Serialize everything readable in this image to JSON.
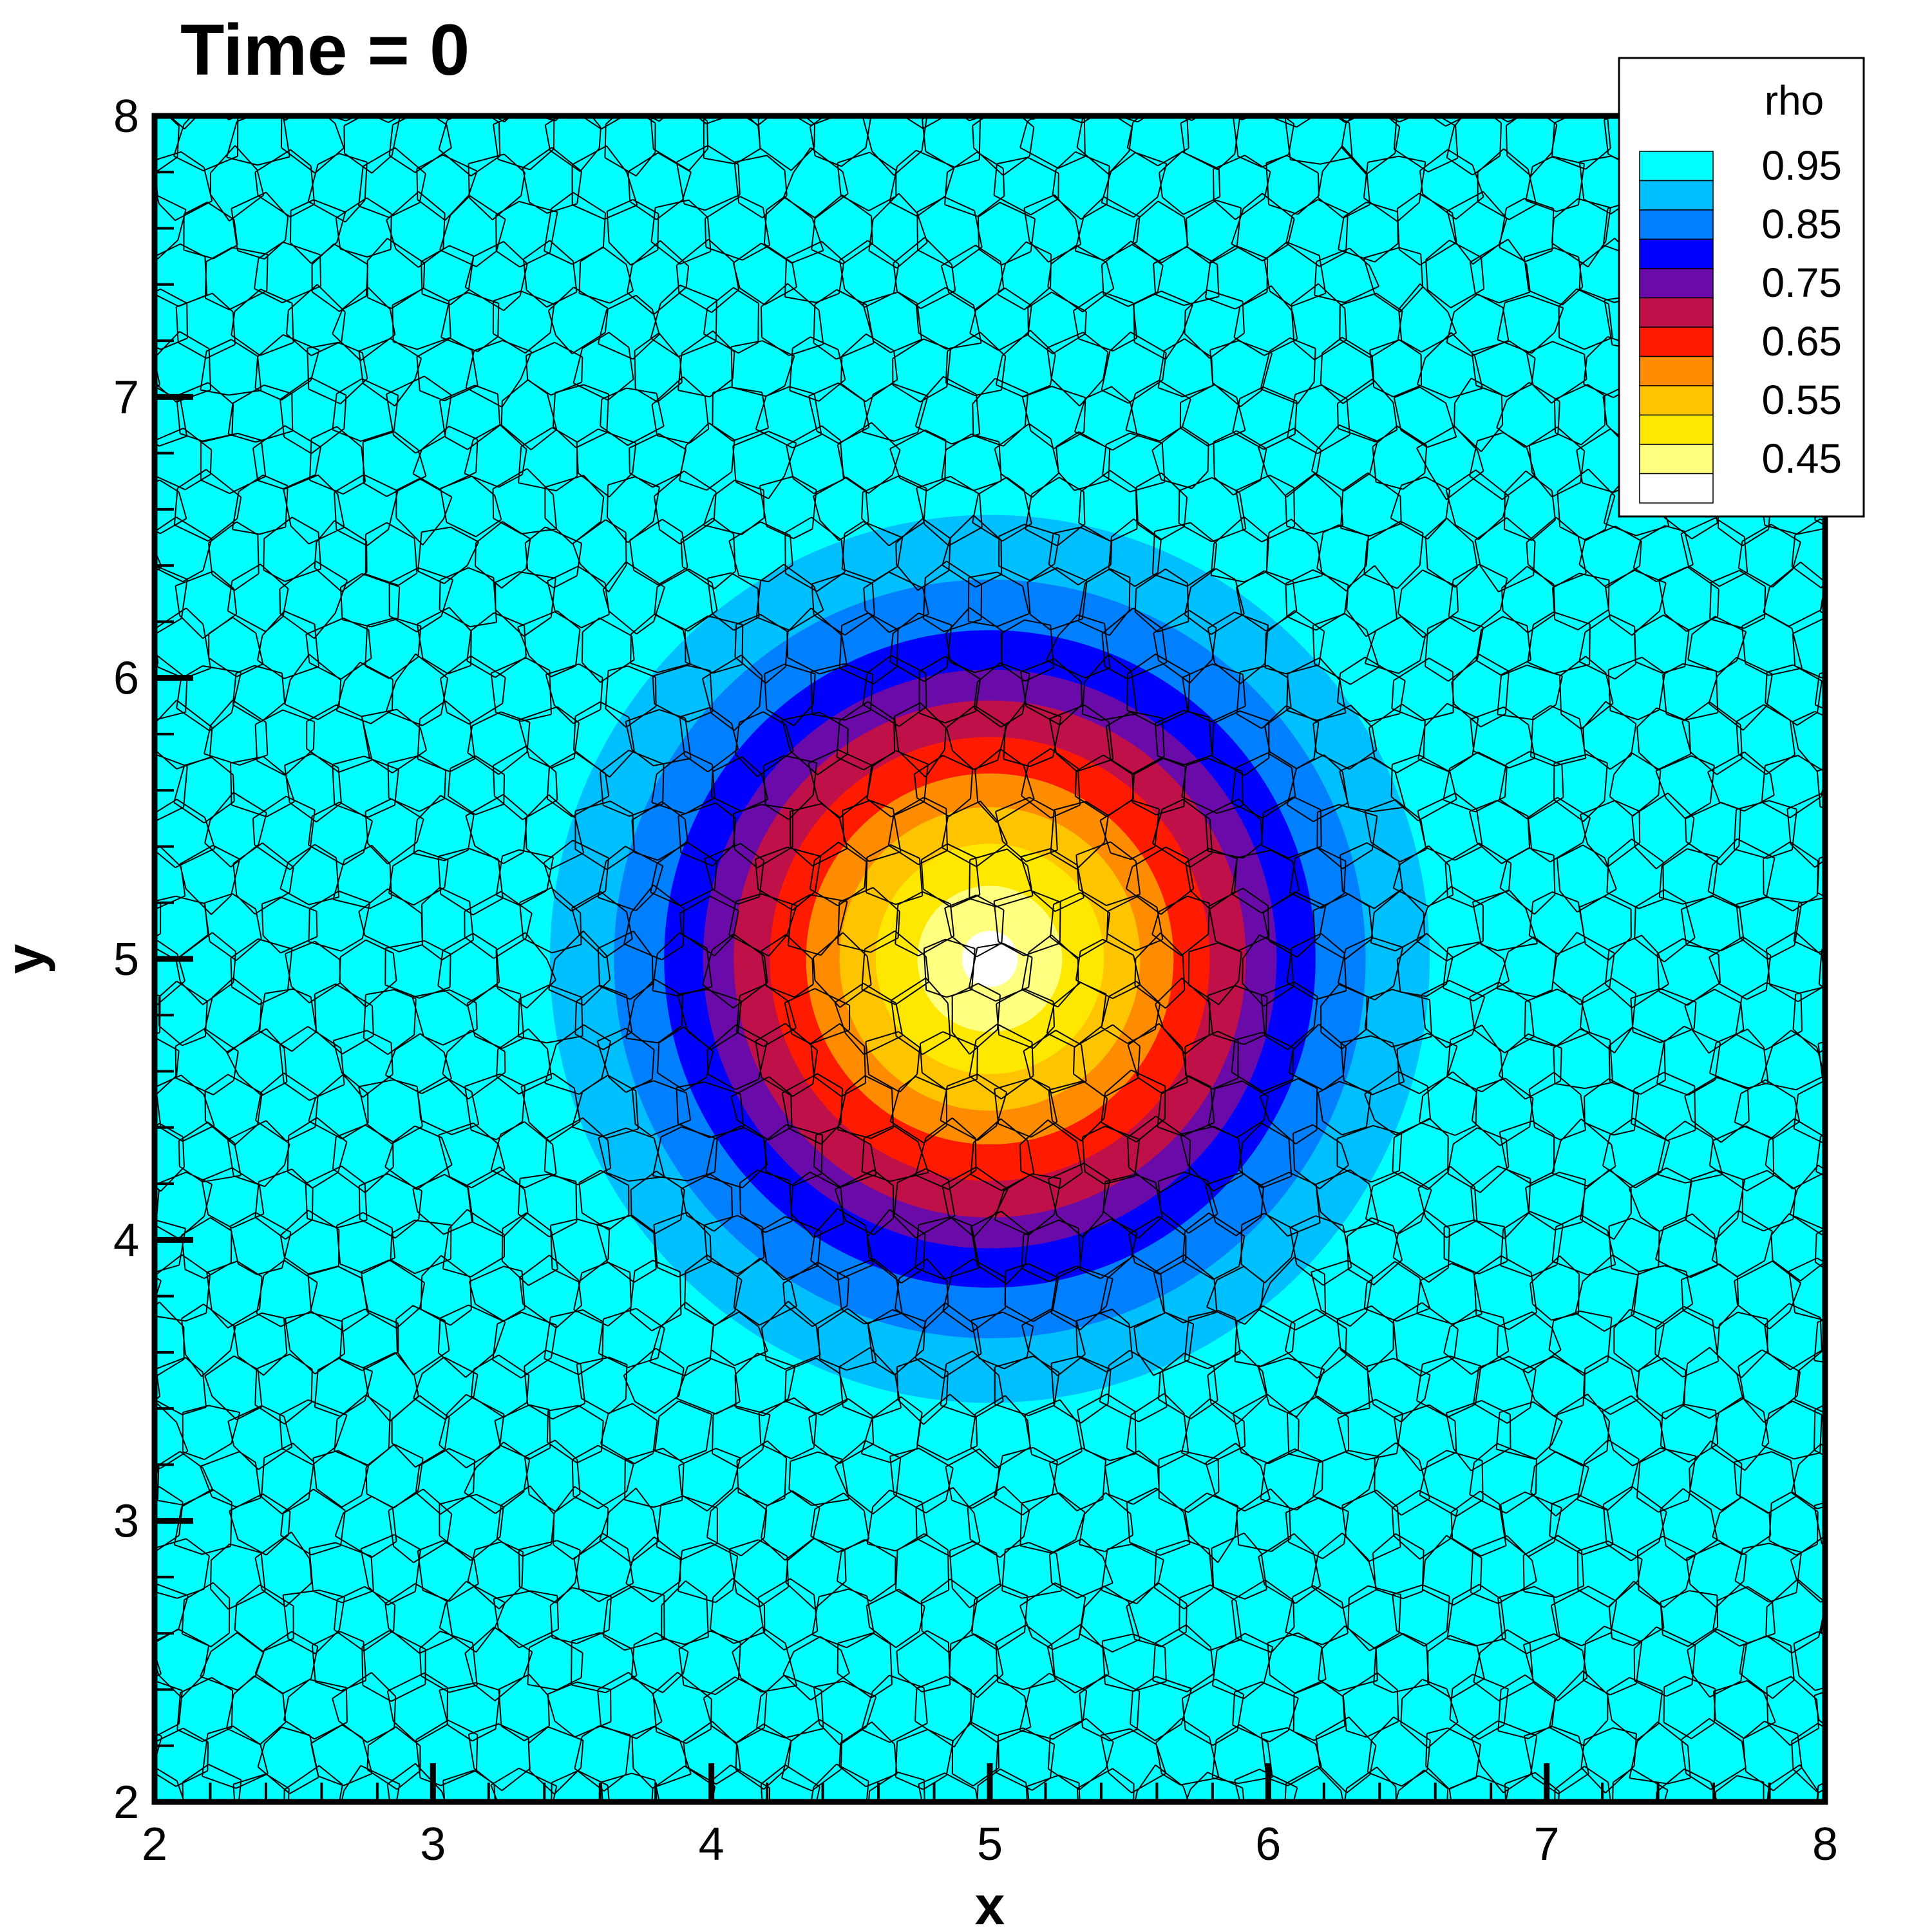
{
  "chart_data": {
    "type": "heatmap",
    "title": "Time = 0",
    "xlabel": "x",
    "ylabel": "y",
    "xlim": [
      2,
      8
    ],
    "ylim": [
      2,
      8
    ],
    "x_ticks": [
      "2",
      "3",
      "4",
      "5",
      "6",
      "7",
      "8"
    ],
    "y_ticks": [
      "2",
      "3",
      "4",
      "5",
      "6",
      "7",
      "8"
    ],
    "grid": false,
    "mesh": "polygonal (Voronoi-like) cell mesh overlaid",
    "field": {
      "name": "rho",
      "description": "radially symmetric density field",
      "center": [
        5.0,
        5.0
      ],
      "minimum": 0.45,
      "background": 1.0,
      "contour_band_outer_radii": [
        {
          "level": 0.95,
          "radius": 1.58
        },
        {
          "level": 0.9,
          "radius": 1.35
        },
        {
          "level": 0.85,
          "radius": 1.17
        },
        {
          "level": 0.8,
          "radius": 1.03
        },
        {
          "level": 0.75,
          "radius": 0.92
        },
        {
          "level": 0.7,
          "radius": 0.79
        },
        {
          "level": 0.65,
          "radius": 0.66
        },
        {
          "level": 0.6,
          "radius": 0.54
        },
        {
          "level": 0.55,
          "radius": 0.41
        },
        {
          "level": 0.5,
          "radius": 0.26
        },
        {
          "level": 0.45,
          "radius": 0.1
        }
      ]
    },
    "colormap": {
      "bands": [
        {
          "level": 0.95,
          "color": "#00FFFF"
        },
        {
          "level": 0.9,
          "color": "#00BFFF"
        },
        {
          "level": 0.85,
          "color": "#0080FF"
        },
        {
          "level": 0.8,
          "color": "#0000FF"
        },
        {
          "level": 0.75,
          "color": "#6A0AA8"
        },
        {
          "level": 0.7,
          "color": "#C0104A"
        },
        {
          "level": 0.65,
          "color": "#FF1A00"
        },
        {
          "level": 0.6,
          "color": "#FF8C00"
        },
        {
          "level": 0.55,
          "color": "#FFC400"
        },
        {
          "level": 0.5,
          "color": "#FFE800"
        },
        {
          "level": 0.45,
          "color": "#FFFF80"
        },
        {
          "level": 0.4,
          "color": "#FFFFFF"
        }
      ]
    },
    "legend": {
      "title": "rho",
      "placement": "top-right",
      "labels": [
        "0.95",
        "0.85",
        "0.75",
        "0.65",
        "0.55",
        "0.45"
      ]
    }
  }
}
